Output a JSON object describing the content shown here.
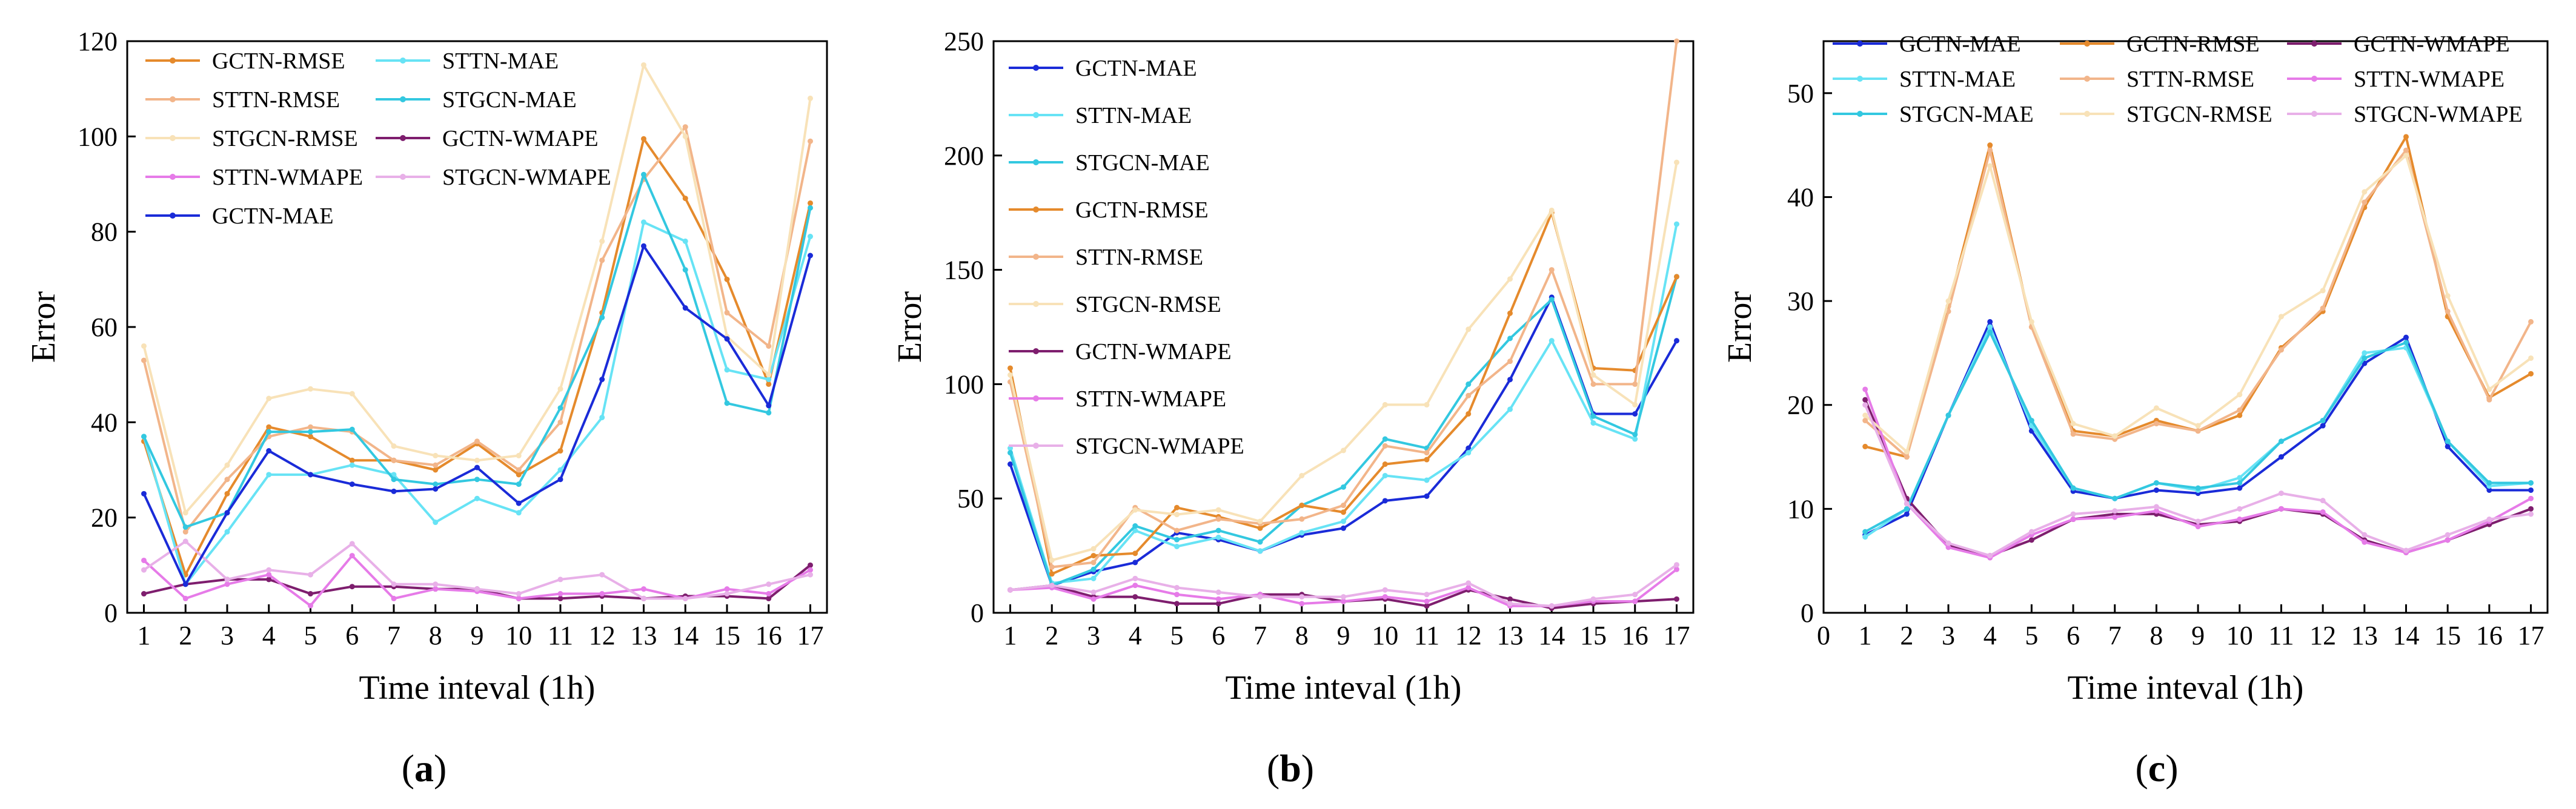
{
  "figure": {
    "panel_labels": [
      {
        "prefix": "(",
        "letter": "a",
        "suffix": ")"
      },
      {
        "prefix": "(",
        "letter": "b",
        "suffix": ")"
      },
      {
        "prefix": "(",
        "letter": "c",
        "suffix": ")"
      }
    ]
  },
  "chart_data": [
    {
      "type": "line",
      "panel": "a",
      "xlabel": "Time inteval (1h)",
      "ylabel": "Error",
      "xlim": [
        0.6,
        17.4
      ],
      "ylim": [
        0,
        120
      ],
      "xticks": [
        1,
        2,
        3,
        4,
        5,
        6,
        7,
        8,
        9,
        10,
        11,
        12,
        13,
        14,
        15,
        16,
        17
      ],
      "yticks": [
        0,
        20,
        40,
        60,
        80,
        100,
        120
      ],
      "legend_placement": "top-left",
      "legend_columns": 2,
      "x": [
        1,
        2,
        3,
        4,
        5,
        6,
        7,
        8,
        9,
        10,
        11,
        12,
        13,
        14,
        15,
        16,
        17
      ],
      "series": [
        {
          "name": "GCTN-RMSE",
          "color": "#E58A2C",
          "values": [
            36,
            8,
            25,
            39,
            37,
            32,
            32,
            30,
            35.5,
            29,
            34,
            63,
            99.5,
            87,
            70,
            48,
            86
          ]
        },
        {
          "name": "STTN-MAE",
          "color": "#67E3F5",
          "values": [
            37,
            6,
            17,
            29,
            29,
            31,
            29,
            19,
            24,
            21,
            30,
            41,
            82,
            78,
            51,
            49,
            79
          ]
        },
        {
          "name": "STTN-RMSE",
          "color": "#F2B58A",
          "values": [
            53,
            17,
            28,
            37,
            39,
            38,
            32,
            31,
            36,
            30,
            40,
            74,
            91,
            102,
            63,
            56,
            99
          ]
        },
        {
          "name": "STGCN-MAE",
          "color": "#33C8E0",
          "values": [
            37,
            18,
            21,
            38,
            38,
            38.5,
            28,
            27,
            28,
            27,
            43,
            62,
            92,
            72,
            44,
            42,
            85
          ]
        },
        {
          "name": "STGCN-RMSE",
          "color": "#F8E2B8",
          "values": [
            56,
            21,
            31,
            45,
            47,
            46,
            35,
            33,
            32,
            33,
            47,
            78,
            115,
            100,
            58,
            50,
            108
          ]
        },
        {
          "name": "GCTN-WMAPE",
          "color": "#7E1E6E",
          "values": [
            4,
            6,
            7,
            7,
            4,
            5.5,
            5.5,
            5,
            5,
            3,
            3,
            3.5,
            3,
            3.5,
            3.5,
            3,
            10
          ]
        },
        {
          "name": "STTN-WMAPE",
          "color": "#E67BE8",
          "values": [
            11,
            3,
            6,
            8,
            1.5,
            12,
            3,
            5,
            4.5,
            3,
            4,
            4,
            5,
            3,
            5,
            4,
            9
          ]
        },
        {
          "name": "STGCN-WMAPE",
          "color": "#E8B0E8",
          "values": [
            9,
            15,
            7,
            9,
            8,
            14.5,
            6,
            6,
            5,
            4,
            7,
            8,
            3,
            3,
            4,
            6,
            8
          ]
        },
        {
          "name": "GCTN-MAE",
          "color": "#1A2BD8",
          "values": [
            25,
            6,
            21,
            34,
            29,
            27,
            25.5,
            26,
            30.5,
            23,
            28,
            49,
            77,
            64,
            57.5,
            43.5,
            75
          ]
        }
      ]
    },
    {
      "type": "line",
      "panel": "b",
      "xlabel": "Time inteval (1h)",
      "ylabel": "Error",
      "xlim": [
        0.6,
        17.4
      ],
      "ylim": [
        0,
        250
      ],
      "xticks": [
        1,
        2,
        3,
        4,
        5,
        6,
        7,
        8,
        9,
        10,
        11,
        12,
        13,
        14,
        15,
        16,
        17
      ],
      "yticks": [
        0,
        50,
        100,
        150,
        200,
        250
      ],
      "legend_placement": "top-left",
      "legend_columns": 1,
      "x": [
        1,
        2,
        3,
        4,
        5,
        6,
        7,
        8,
        9,
        10,
        11,
        12,
        13,
        14,
        15,
        16,
        17
      ],
      "series": [
        {
          "name": "GCTN-MAE",
          "color": "#1A2BD8",
          "values": [
            65,
            12,
            18,
            22,
            35,
            32,
            27,
            34,
            37,
            49,
            51,
            72,
            102,
            138,
            87,
            87,
            119
          ]
        },
        {
          "name": "STTN-MAE",
          "color": "#67E3F5",
          "values": [
            72,
            13,
            15,
            36,
            29,
            33,
            27,
            35,
            40,
            60,
            58,
            70,
            89,
            119,
            83,
            76,
            170
          ]
        },
        {
          "name": "STGCN-MAE",
          "color": "#33C8E0",
          "values": [
            70,
            12,
            19,
            38,
            32,
            36,
            31,
            47,
            55,
            76,
            72,
            100,
            120,
            137,
            86,
            78,
            147
          ]
        },
        {
          "name": "GCTN-RMSE",
          "color": "#E58A2C",
          "values": [
            107,
            17,
            25,
            26,
            46,
            42,
            37,
            47,
            44,
            65,
            67,
            87,
            131,
            175,
            107,
            106,
            147
          ]
        },
        {
          "name": "STTN-RMSE",
          "color": "#F2B58A",
          "values": [
            101,
            20,
            22,
            46,
            36,
            41,
            39,
            41,
            47,
            73,
            70,
            95,
            110,
            150,
            100,
            100,
            250
          ]
        },
        {
          "name": "STGCN-RMSE",
          "color": "#F8E2B8",
          "values": [
            104,
            23,
            28,
            45,
            43,
            45,
            40,
            60,
            71,
            91,
            91,
            124,
            146,
            176,
            104,
            91,
            197
          ]
        },
        {
          "name": "GCTN-WMAPE",
          "color": "#7E1E6E",
          "values": [
            10,
            12,
            7,
            7,
            4,
            4,
            8,
            8,
            5,
            6,
            3,
            10,
            6,
            2,
            4,
            5,
            6
          ]
        },
        {
          "name": "STTN-WMAPE",
          "color": "#E67BE8",
          "values": [
            10,
            11,
            6,
            12,
            8,
            6,
            8,
            4,
            5,
            7,
            5,
            11,
            3,
            3,
            5,
            5,
            19
          ]
        },
        {
          "name": "STGCN-WMAPE",
          "color": "#E8B0E8",
          "values": [
            10,
            12,
            9,
            15,
            11,
            9,
            7,
            7,
            7,
            10,
            8,
            13,
            4,
            3,
            6,
            8,
            21
          ]
        }
      ]
    },
    {
      "type": "line",
      "panel": "c",
      "xlabel": "Time inteval (1h)",
      "ylabel": "Error",
      "xlim": [
        0,
        17.4
      ],
      "ylim": [
        0,
        55
      ],
      "xticks": [
        0,
        1,
        2,
        3,
        4,
        5,
        6,
        7,
        8,
        9,
        10,
        11,
        12,
        13,
        14,
        15,
        16,
        17
      ],
      "yticks": [
        0,
        10,
        20,
        30,
        40,
        50
      ],
      "legend_placement": "top",
      "legend_columns": 3,
      "x": [
        1,
        2,
        3,
        4,
        5,
        6,
        7,
        8,
        9,
        10,
        11,
        12,
        13,
        14,
        15,
        16,
        17
      ],
      "series": [
        {
          "name": "GCTN-MAE",
          "color": "#1A2BD8",
          "values": [
            7.5,
            9.5,
            19,
            28,
            17.5,
            11.7,
            11,
            11.8,
            11.5,
            12,
            15,
            18,
            24,
            26.5,
            16,
            11.8,
            11.8
          ]
        },
        {
          "name": "GCTN-RMSE",
          "color": "#E58A2C",
          "values": [
            16,
            15,
            29.5,
            45,
            27.5,
            17.5,
            17,
            18.5,
            17.5,
            19,
            25.5,
            29,
            39,
            45.8,
            28.5,
            20.7,
            23
          ]
        },
        {
          "name": "GCTN-WMAPE",
          "color": "#7E1E6E",
          "values": [
            20.5,
            11,
            6.5,
            5.5,
            7,
            9,
            9.5,
            9.5,
            8.5,
            8.8,
            10,
            9.5,
            7,
            5.8,
            7,
            8.5,
            10
          ]
        },
        {
          "name": "STTN-MAE",
          "color": "#67E3F5",
          "values": [
            7.3,
            10,
            19,
            27.5,
            18,
            12,
            11,
            12.5,
            11.8,
            13,
            16.5,
            18.5,
            25,
            25.5,
            16.5,
            12.2,
            12.5
          ]
        },
        {
          "name": "STTN-RMSE",
          "color": "#F2B58A",
          "values": [
            18.5,
            15,
            29,
            44.5,
            27.5,
            17.2,
            16.7,
            18.2,
            17.5,
            19.5,
            25.3,
            29.3,
            39.5,
            44.5,
            29,
            20.5,
            28
          ]
        },
        {
          "name": "STTN-WMAPE",
          "color": "#E67BE8",
          "values": [
            21.5,
            10.5,
            6.3,
            5.3,
            7.5,
            9,
            9.2,
            9.8,
            8.3,
            9,
            10,
            9.7,
            6.8,
            5.8,
            7,
            8.8,
            11
          ]
        },
        {
          "name": "STGCN-MAE",
          "color": "#33C8E0",
          "values": [
            7.8,
            10,
            19,
            27,
            18.5,
            12,
            11,
            12.5,
            12,
            12.5,
            16.5,
            18.5,
            24.5,
            26,
            16.5,
            12.5,
            12.5
          ]
        },
        {
          "name": "STGCN-RMSE",
          "color": "#F8E2B8",
          "values": [
            19,
            15.5,
            30,
            43,
            28,
            18.2,
            17,
            19.7,
            18,
            21,
            28.5,
            31,
            40.5,
            44,
            30.5,
            21.5,
            24.5
          ]
        },
        {
          "name": "STGCN-WMAPE",
          "color": "#E8B0E8",
          "values": [
            20,
            10.5,
            6.7,
            5.5,
            7.8,
            9.5,
            9.8,
            10.2,
            8.8,
            10,
            11.5,
            10.8,
            7.5,
            6,
            7.5,
            9,
            9.5
          ]
        }
      ]
    }
  ]
}
